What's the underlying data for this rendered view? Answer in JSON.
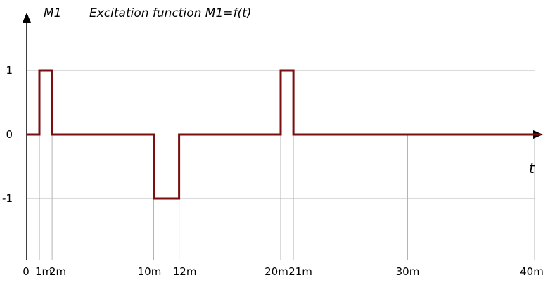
{
  "chart_data": {
    "type": "line",
    "title": "Excitation function M1=f(t)",
    "ylabel": "M1",
    "xlabel": "t",
    "xlim": [
      0,
      40
    ],
    "ylim": [
      -1.9,
      1.9
    ],
    "x_tick_values": [
      0,
      1,
      2,
      10,
      12,
      20,
      21,
      30,
      40
    ],
    "x_tick_labels": [
      "0",
      "1m",
      "2m",
      "10m",
      "12m",
      "20m",
      "21m",
      "30m",
      "40m"
    ],
    "y_tick_values": [
      1,
      0,
      -1
    ],
    "y_tick_labels": [
      "1",
      "0",
      "-1"
    ],
    "series": [
      {
        "color": "#7b0f0f",
        "points": [
          [
            0,
            0
          ],
          [
            1,
            0
          ],
          [
            1,
            1
          ],
          [
            2,
            1
          ],
          [
            2,
            0
          ],
          [
            10,
            0
          ],
          [
            10,
            -1
          ],
          [
            12,
            -1
          ],
          [
            12,
            0
          ],
          [
            20,
            0
          ],
          [
            20,
            1
          ],
          [
            21,
            1
          ],
          [
            21,
            0
          ],
          [
            40.5,
            0
          ]
        ]
      }
    ],
    "grid": true
  }
}
